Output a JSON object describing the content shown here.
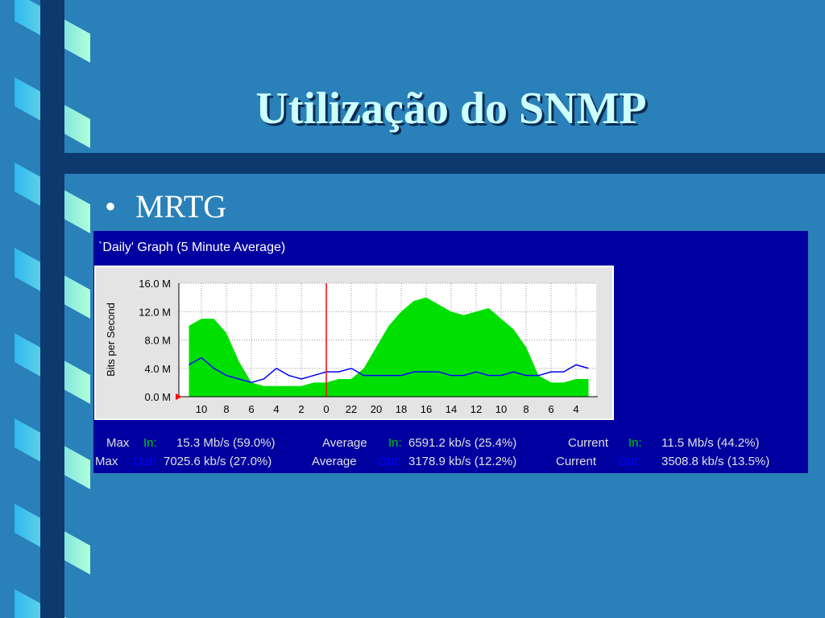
{
  "slide": {
    "title": "Utilização do SNMP",
    "bullet": "MRTG"
  },
  "chart_data": {
    "type": "area-line",
    "title": "`Daily' Graph (5 Minute Average)",
    "y_label": "Bits per Second",
    "categories": [
      null,
      "10",
      null,
      "8",
      null,
      "6",
      null,
      "4",
      null,
      "2",
      null,
      "0",
      null,
      "22",
      null,
      "20",
      null,
      "18",
      null,
      "16",
      null,
      "14",
      null,
      "12",
      null,
      "10",
      null,
      "8",
      null,
      "6",
      null,
      "4",
      null
    ],
    "series": [
      {
        "color": "#00e000",
        "values": [
          10,
          11,
          11,
          9,
          5,
          2,
          1.5,
          1.5,
          1.5,
          1.5,
          2,
          2,
          2.5,
          2.5,
          4,
          7,
          10,
          12,
          13.5,
          14,
          13,
          12,
          11.5,
          12,
          12.5,
          11,
          9.5,
          7,
          3,
          2,
          2,
          2.5,
          2.5
        ]
      },
      {
        "color": "#0000ff",
        "values": [
          4.5,
          5.5,
          4,
          3,
          2.5,
          2,
          2.5,
          4,
          3,
          2.5,
          3,
          3.5,
          3.5,
          4,
          3,
          3,
          3,
          3,
          3.5,
          3.5,
          3.5,
          3,
          3,
          3.5,
          3,
          3,
          3.5,
          3,
          3,
          3.5,
          3.5,
          4.5,
          4
        ]
      }
    ],
    "ylim": [
      0,
      16
    ],
    "yticks": [
      {
        "value": 0,
        "label": "0.0 M"
      },
      {
        "value": 4,
        "label": "4.0 M"
      },
      {
        "value": 8,
        "label": "8.0 M"
      },
      {
        "value": 12,
        "label": "12.0 M"
      },
      {
        "value": 16,
        "label": "16.0 M"
      }
    ],
    "grid": true,
    "stats": [
      [
        "Max",
        "In:",
        "15.3 Mb/s (59.0%)",
        "Average",
        "In:",
        "6591.2 kb/s (25.4%)",
        "Current",
        "In:",
        "11.5 Mb/s (44.2%)"
      ],
      [
        "Max",
        "Out:",
        "7025.6 kb/s (27.0%)",
        "Average",
        "Out:",
        "3178.9 kb/s (12.2%)",
        "Current",
        "Out:",
        "3508.8 kb/s (13.5%)"
      ]
    ]
  }
}
